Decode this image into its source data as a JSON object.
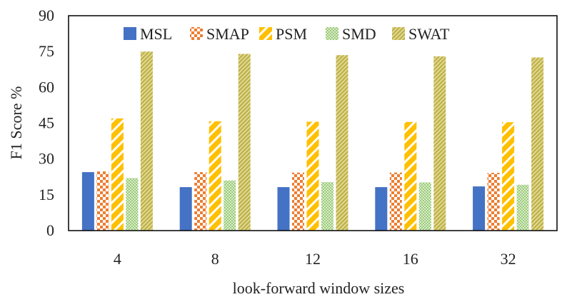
{
  "chart_data": {
    "type": "bar",
    "title": "",
    "xlabel": "look-forward window sizes",
    "ylabel": "F1 Score %",
    "categories": [
      "4",
      "8",
      "12",
      "16",
      "32"
    ],
    "ylim": [
      0,
      90
    ],
    "yticks": [
      0,
      15,
      30,
      45,
      60,
      75,
      90
    ],
    "grid": false,
    "legend_position": "top-center",
    "series": [
      {
        "name": "MSL",
        "color": "#4472C4",
        "pattern": "solid",
        "values": [
          24.5,
          18.2,
          18.2,
          18.2,
          18.5
        ]
      },
      {
        "name": "SMAP",
        "color": "#ED7D31",
        "pattern": "checkerboard",
        "values": [
          24.8,
          24.5,
          24.3,
          24.3,
          24.2
        ]
      },
      {
        "name": "PSM",
        "color": "#FFC000",
        "pattern": "wide-diagonal",
        "values": [
          47.0,
          45.8,
          45.6,
          45.5,
          45.4
        ]
      },
      {
        "name": "SMD",
        "color": "#A9D18E",
        "pattern": "dots",
        "values": [
          22.0,
          21.0,
          20.3,
          20.2,
          19.2
        ]
      },
      {
        "name": "SWAT",
        "color": "#BFB34E",
        "pattern": "fine-diagonal",
        "values": [
          75.0,
          74.0,
          73.5,
          73.0,
          72.5
        ]
      }
    ]
  }
}
